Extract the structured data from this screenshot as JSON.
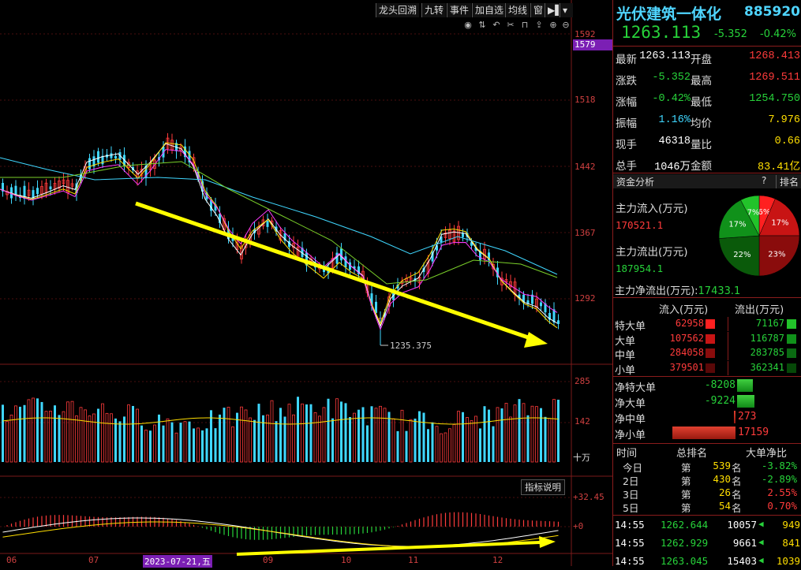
{
  "toolbar": {
    "buttons": [
      "龙头回溯",
      "九转",
      "事件",
      "加自选",
      "均线",
      "窗"
    ]
  },
  "price_axis": {
    "ticks": [
      "1592",
      "1518",
      "1442",
      "1367",
      "1292"
    ],
    "current_marker": "1579",
    "low_label": "1235.375"
  },
  "volume_axis": {
    "ticks": [
      "285",
      "142"
    ],
    "unit": "十万"
  },
  "indicator": {
    "explain_label": "指标说明",
    "ticks": [
      "+32.45",
      "+0"
    ]
  },
  "date_axis": {
    "labels": [
      "06",
      "07",
      "2023-07-21,五",
      "09",
      "10",
      "11",
      "12"
    ]
  },
  "stock": {
    "name": "光伏建筑一体化",
    "code": "885920",
    "price": "1263.113",
    "change": "-5.352",
    "change_pct": "-0.42%"
  },
  "quote": {
    "rows": [
      {
        "l1": "最新",
        "v1": "1263.113",
        "l2": "开盘",
        "v2": "1268.413"
      },
      {
        "l1": "涨跌",
        "v1": "-5.352",
        "l2": "最高",
        "v2": "1269.511"
      },
      {
        "l1": "涨幅",
        "v1": "-0.42%",
        "l2": "最低",
        "v2": "1254.750"
      },
      {
        "l1": "振幅",
        "v1": "1.16%",
        "l2": "均价",
        "v2": "7.976"
      },
      {
        "l1": "现手",
        "v1": "46318",
        "l2": "量比",
        "v2": "0.66"
      },
      {
        "l1": "总手",
        "v1": "1046万",
        "l2": "金额",
        "v2": "83.41亿"
      }
    ]
  },
  "fund": {
    "title": "资金分析",
    "help": "?",
    "rank_btn": "排名",
    "inflow_label": "主力流入(万元)",
    "inflow_value": "170521.1",
    "outflow_label": "主力流出(万元)",
    "outflow_value": "187954.1",
    "net_label": "主力净流出(万元):",
    "net_value": "17433.1",
    "pie": [
      {
        "label": "6%",
        "value": 6,
        "color": "#ff2020"
      },
      {
        "label": "17%",
        "value": 17,
        "color": "#c81414"
      },
      {
        "label": "23%",
        "value": 23,
        "color": "#8a0c0c"
      },
      {
        "label": "22%",
        "value": 22,
        "color": "#0a5a0a"
      },
      {
        "label": "17%",
        "value": 17,
        "color": "#10911a"
      },
      {
        "label": "7%",
        "value": 7,
        "color": "#22c32a"
      }
    ],
    "col_in": "流入(万元)",
    "col_out": "流出(万元)",
    "flows": [
      {
        "label": "特大单",
        "in": "62958",
        "out": "71167"
      },
      {
        "label": "大单",
        "in": "107562",
        "out": "116787"
      },
      {
        "label": "中单",
        "in": "284058",
        "out": "283785"
      },
      {
        "label": "小单",
        "in": "379501",
        "out": "362341"
      }
    ],
    "nets": [
      {
        "label": "净特大单",
        "value": "-8208",
        "ratio": 0.47
      },
      {
        "label": "净大单",
        "value": "-9224",
        "ratio": 0.53
      },
      {
        "label": "净中单",
        "value": "273",
        "ratio": 0.02
      },
      {
        "label": "净小单",
        "value": "17159",
        "ratio": 1.0
      }
    ]
  },
  "rank": {
    "headers": [
      "时间",
      "总排名",
      "大单净比"
    ],
    "rows": [
      {
        "t": "今日",
        "prefix": "第",
        "n": "539",
        "suffix": "名",
        "ratio": "-3.82%"
      },
      {
        "t": "2日",
        "prefix": "第",
        "n": "430",
        "suffix": "名",
        "ratio": "-2.89%"
      },
      {
        "t": "3日",
        "prefix": "第",
        "n": "26",
        "suffix": "名",
        "ratio": "2.55%"
      },
      {
        "t": "5日",
        "prefix": "第",
        "n": "54",
        "suffix": "名",
        "ratio": "0.70%"
      }
    ]
  },
  "ticks": [
    {
      "time": "14:55",
      "price": "1262.644",
      "vol": "10057",
      "num": "949"
    },
    {
      "time": "14:55",
      "price": "1262.929",
      "vol": "9661",
      "num": "841"
    },
    {
      "time": "14:55",
      "price": "1263.045",
      "vol": "15403",
      "num": "1039"
    }
  ],
  "colors": {
    "up": "#ff3b3b",
    "down": "#3fd7ff",
    "arrow": "#ffff00",
    "grid": "#5a1010"
  }
}
